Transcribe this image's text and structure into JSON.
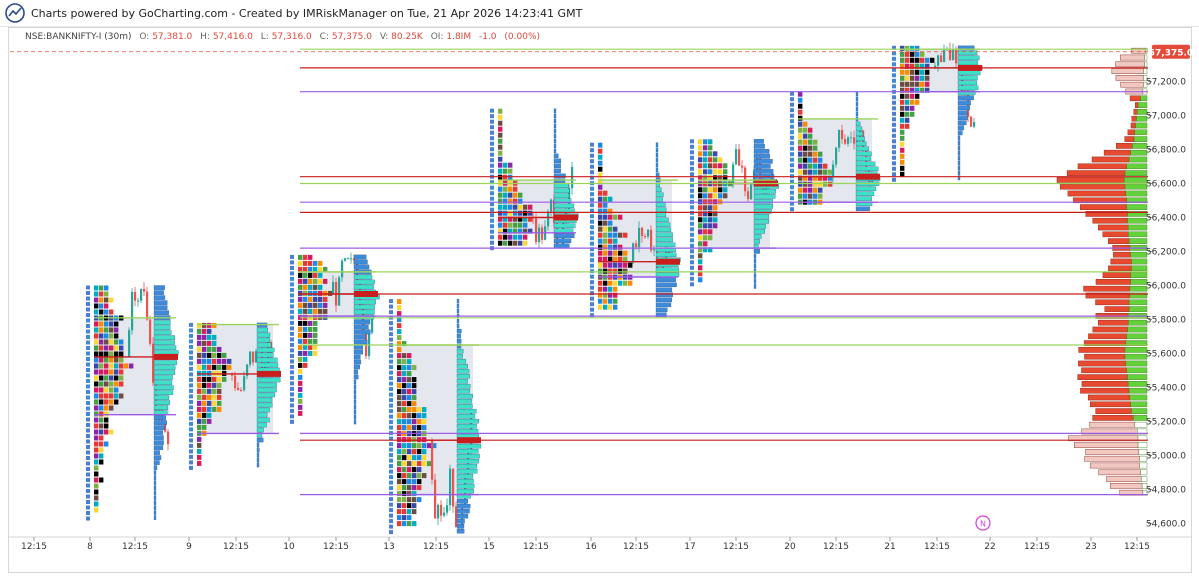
{
  "header": {
    "credit": "Charts powered by GoCharting.com - Created by IMRiskManager on Tue, 21 Apr 2026 14:23:41 GMT",
    "logo_icon": "gocharting-logo-icon"
  },
  "legend": {
    "symbol": "NSE:BANKNIFTY-I (30m)",
    "o_label": "O:",
    "o_value": "57,381.0",
    "h_label": "H:",
    "h_value": "57,416.0",
    "l_label": "L:",
    "l_value": "57,316.0",
    "c_label": "C:",
    "c_value": "57,375.0",
    "v_label": "V:",
    "v_value": "80.25K",
    "oi_label": "OI:",
    "oi_value": "1.8IM",
    "chg_value": "-1.0",
    "chg_pct": "(0.00%)"
  },
  "colors": {
    "bull": "#26a69a",
    "bear": "#ef5350",
    "profile_fill": "#dfe3ea",
    "vah": "#9bd45c",
    "val": "#9b5de5",
    "poc": "#c81e1e",
    "price_tag": "#e34a3a",
    "aggregate_buy": "#64d13a",
    "aggregate_sell": "#e84a2f",
    "aggregate_light": "#f2c7c0",
    "session_hist": "#3d8bd9",
    "session_hist_green": "#3fe0c5"
  },
  "chart_data": {
    "type": "market_profile",
    "title": "NSE:BANKNIFTY-I (30m)",
    "last_price": 57375.0,
    "last_price_label": "57,375.0",
    "y_ticks": [
      54600,
      54800,
      55000,
      55200,
      55400,
      55600,
      55800,
      56000,
      56200,
      56400,
      56600,
      56800,
      57000,
      57200
    ],
    "y_tick_labels": [
      "54,600.0",
      "54,800.0",
      "55,000.0",
      "55,200.0",
      "55,400.0",
      "55,600.0",
      "55,800.0",
      "56,000.0",
      "56,200.0",
      "56,400.0",
      "56,600.0",
      "56,800.0",
      "57,000.0",
      "57,200.0"
    ],
    "ylim": [
      54530,
      57460
    ],
    "x_ticks": [
      "12:15",
      "8",
      "12:15",
      "9",
      "12:15",
      "10",
      "12:15",
      "13",
      "12:15",
      "15",
      "12:15",
      "16",
      "12:15",
      "17",
      "12:15",
      "20",
      "12:15",
      "21",
      "12:15",
      "22",
      "12:15",
      "23",
      "12:15"
    ],
    "sessions": [
      {
        "day": "8",
        "high": 56000,
        "low": 54640,
        "vah": 55810,
        "val": 55240,
        "poc": 55580
      },
      {
        "day": "9",
        "high": 55780,
        "low": 54930,
        "vah": 55770,
        "val": 55130,
        "poc": 55480
      },
      {
        "day": "10",
        "high": 56180,
        "low": 55200,
        "vah": 56080,
        "val": 55820,
        "poc": 55950
      },
      {
        "day": "13",
        "high": 55920,
        "low": 54560,
        "vah": 55650,
        "val": 54770,
        "poc": 55090
      },
      {
        "day": "15",
        "high": 57040,
        "low": 56220,
        "vah": 56620,
        "val": 56310,
        "poc": 56400
      },
      {
        "day": "16",
        "high": 56840,
        "low": 55830,
        "vah": 56620,
        "val": 56050,
        "poc": 56140
      },
      {
        "day": "17",
        "high": 56860,
        "low": 55990,
        "vah": 56620,
        "val": 56220,
        "poc": 56600
      },
      {
        "day": "20",
        "high": 57140,
        "low": 56440,
        "vah": 56980,
        "val": 56490,
        "poc": 56640
      },
      {
        "day": "21",
        "high": 57410,
        "low": 56620,
        "vah": 57390,
        "val": 57140,
        "poc": 57280
      }
    ],
    "aggregate_profile": [
      {
        "price": 54780,
        "buy": 10,
        "sell": 40
      },
      {
        "price": 54820,
        "buy": 12,
        "sell": 55
      },
      {
        "price": 54860,
        "buy": 14,
        "sell": 60
      },
      {
        "price": 54900,
        "buy": 16,
        "sell": 72
      },
      {
        "price": 54940,
        "buy": 18,
        "sell": 85
      },
      {
        "price": 54980,
        "buy": 18,
        "sell": 95
      },
      {
        "price": 55020,
        "buy": 20,
        "sell": 92
      },
      {
        "price": 55060,
        "buy": 22,
        "sell": 110
      },
      {
        "price": 55100,
        "buy": 22,
        "sell": 120
      },
      {
        "price": 55140,
        "buy": 24,
        "sell": 96
      },
      {
        "price": 55180,
        "buy": 30,
        "sell": 78
      },
      {
        "price": 55220,
        "buy": 34,
        "sell": 70
      },
      {
        "price": 55260,
        "buy": 38,
        "sell": 62
      },
      {
        "price": 55300,
        "buy": 40,
        "sell": 70
      },
      {
        "price": 55340,
        "buy": 42,
        "sell": 72
      },
      {
        "price": 55380,
        "buy": 44,
        "sell": 84
      },
      {
        "price": 55420,
        "buy": 46,
        "sell": 80
      },
      {
        "price": 55460,
        "buy": 48,
        "sell": 86
      },
      {
        "price": 55500,
        "buy": 50,
        "sell": 78
      },
      {
        "price": 55540,
        "buy": 52,
        "sell": 82
      },
      {
        "price": 55580,
        "buy": 54,
        "sell": 70
      },
      {
        "price": 55620,
        "buy": 54,
        "sell": 80
      },
      {
        "price": 55660,
        "buy": 52,
        "sell": 72
      },
      {
        "price": 55700,
        "buy": 50,
        "sell": 66
      },
      {
        "price": 55740,
        "buy": 48,
        "sell": 60
      },
      {
        "price": 55780,
        "buy": 46,
        "sell": 52
      },
      {
        "price": 55820,
        "buy": 46,
        "sell": 56
      },
      {
        "price": 55860,
        "buy": 44,
        "sell": 42
      },
      {
        "price": 55900,
        "buy": 44,
        "sell": 58
      },
      {
        "price": 55940,
        "buy": 42,
        "sell": 76
      },
      {
        "price": 55980,
        "buy": 42,
        "sell": 80
      },
      {
        "price": 56020,
        "buy": 40,
        "sell": 60
      },
      {
        "price": 56060,
        "buy": 40,
        "sell": 48
      },
      {
        "price": 56100,
        "buy": 38,
        "sell": 40
      },
      {
        "price": 56140,
        "buy": 38,
        "sell": 36
      },
      {
        "price": 56180,
        "buy": 40,
        "sell": 30
      },
      {
        "price": 56220,
        "buy": 42,
        "sell": 30
      },
      {
        "price": 56260,
        "buy": 44,
        "sell": 36
      },
      {
        "price": 56300,
        "buy": 46,
        "sell": 44
      },
      {
        "price": 56340,
        "buy": 46,
        "sell": 52
      },
      {
        "price": 56380,
        "buy": 48,
        "sell": 60
      },
      {
        "price": 56420,
        "buy": 48,
        "sell": 72
      },
      {
        "price": 56460,
        "buy": 50,
        "sell": 80
      },
      {
        "price": 56500,
        "buy": 50,
        "sell": 92
      },
      {
        "price": 56540,
        "buy": 52,
        "sell": 100
      },
      {
        "price": 56580,
        "buy": 54,
        "sell": 112
      },
      {
        "price": 56620,
        "buy": 56,
        "sell": 116
      },
      {
        "price": 56660,
        "buy": 54,
        "sell": 100
      },
      {
        "price": 56700,
        "buy": 50,
        "sell": 84
      },
      {
        "price": 56740,
        "buy": 44,
        "sell": 64
      },
      {
        "price": 56780,
        "buy": 40,
        "sell": 46
      },
      {
        "price": 56820,
        "buy": 36,
        "sell": 28
      },
      {
        "price": 56860,
        "buy": 32,
        "sell": 16
      },
      {
        "price": 56900,
        "buy": 30,
        "sell": 12
      },
      {
        "price": 56940,
        "buy": 28,
        "sell": 8
      },
      {
        "price": 56980,
        "buy": 26,
        "sell": 8
      },
      {
        "price": 57020,
        "buy": 24,
        "sell": 6
      },
      {
        "price": 57060,
        "buy": 22,
        "sell": 5
      },
      {
        "price": 57100,
        "buy": 16,
        "sell": 18
      },
      {
        "price": 57140,
        "buy": 10,
        "sell": 30
      },
      {
        "price": 57180,
        "buy": 8,
        "sell": 40
      },
      {
        "price": 57220,
        "buy": 8,
        "sell": 48
      },
      {
        "price": 57260,
        "buy": 8,
        "sell": 55
      },
      {
        "price": 57300,
        "buy": 6,
        "sell": 50
      },
      {
        "price": 57340,
        "buy": 6,
        "sell": 42
      },
      {
        "price": 57380,
        "buy": 4,
        "sell": 24
      }
    ],
    "reference_lines": [
      {
        "price": 57140,
        "kind": "val"
      },
      {
        "price": 57280,
        "kind": "poc"
      },
      {
        "price": 57390,
        "kind": "vah"
      },
      {
        "price": 56640,
        "kind": "poc"
      },
      {
        "price": 56490,
        "kind": "val"
      },
      {
        "price": 56600,
        "kind": "vah"
      },
      {
        "price": 56430,
        "kind": "poc"
      },
      {
        "price": 56220,
        "kind": "val"
      },
      {
        "price": 55950,
        "kind": "poc"
      },
      {
        "price": 56080,
        "kind": "vah"
      },
      {
        "price": 55820,
        "kind": "val"
      },
      {
        "price": 55810,
        "kind": "vah"
      },
      {
        "price": 55650,
        "kind": "vah"
      },
      {
        "price": 55090,
        "kind": "poc"
      },
      {
        "price": 55130,
        "kind": "val"
      },
      {
        "price": 54770,
        "kind": "val"
      }
    ],
    "markers": [
      {
        "label": "N",
        "color": "#d63fd6"
      }
    ]
  }
}
